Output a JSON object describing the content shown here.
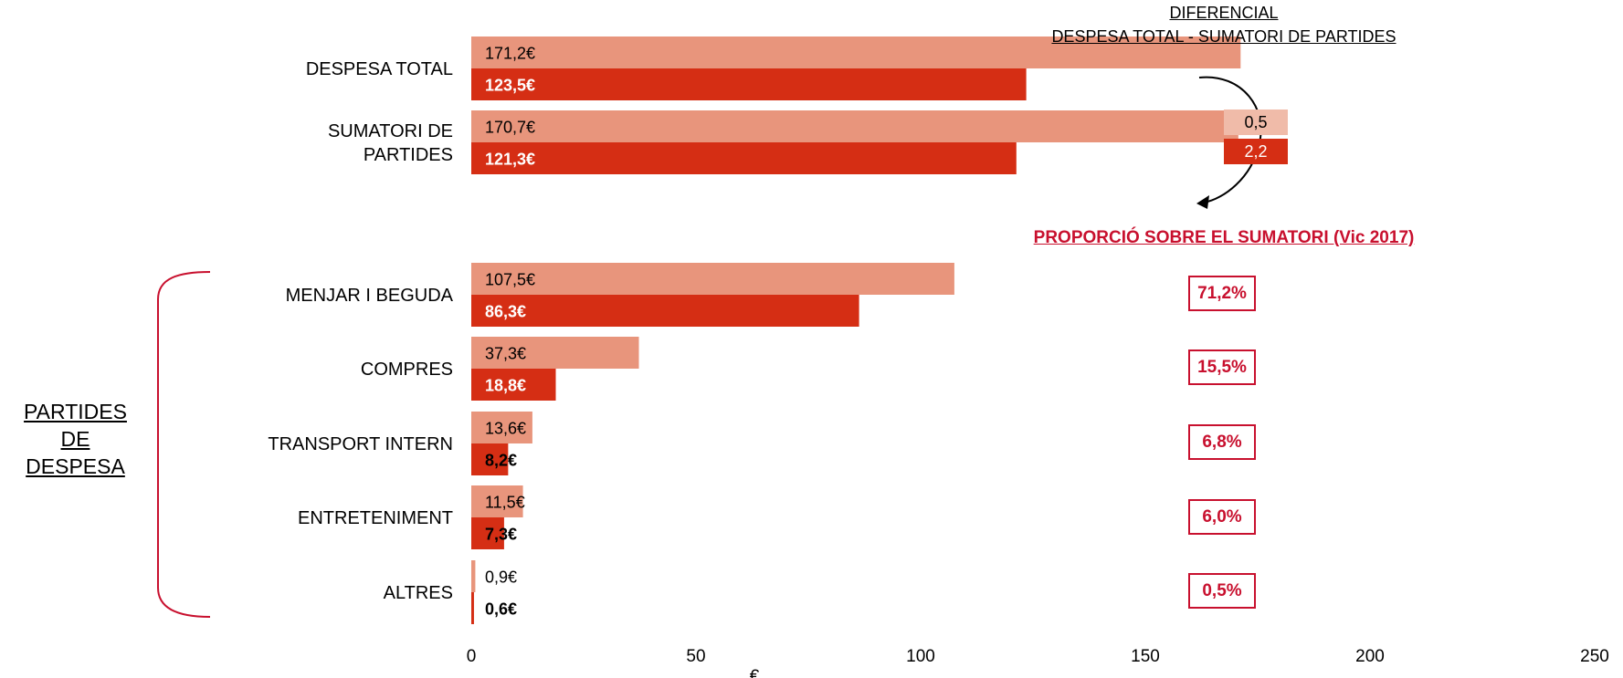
{
  "chart_data": {
    "type": "bar",
    "orientation": "horizontal",
    "xlabel": "€",
    "xlim": [
      0,
      250
    ],
    "xticks": [
      "0",
      "50",
      "100",
      "150",
      "200",
      "250"
    ],
    "series": [
      {
        "color": "#e8957c"
      },
      {
        "color": "#d52e14"
      }
    ],
    "categories": [
      {
        "label_lines": [
          "DESPESA TOTAL"
        ],
        "values": [
          171.2,
          123.5
        ],
        "labels": [
          "171,2€",
          "123,5€"
        ]
      },
      {
        "label_lines": [
          "SUMATORI DE",
          "PARTIDES"
        ],
        "values": [
          170.7,
          121.3
        ],
        "labels": [
          "170,7€",
          "121,3€"
        ]
      },
      {
        "label_lines": [
          "MENJAR I BEGUDA"
        ],
        "values": [
          107.5,
          86.3
        ],
        "labels": [
          "107,5€",
          "86,3€"
        ]
      },
      {
        "label_lines": [
          "COMPRES"
        ],
        "values": [
          37.3,
          18.8
        ],
        "labels": [
          "37,3€",
          "18,8€"
        ]
      },
      {
        "label_lines": [
          "TRANSPORT INTERN"
        ],
        "values": [
          13.6,
          8.2
        ],
        "labels": [
          "13,6€",
          "8,2€"
        ]
      },
      {
        "label_lines": [
          "ENTRETENIMENT"
        ],
        "values": [
          11.5,
          7.3
        ],
        "labels": [
          "11,5€",
          "7,3€"
        ]
      },
      {
        "label_lines": [
          "ALTRES"
        ],
        "values": [
          0.9,
          0.6
        ],
        "labels": [
          "0,9€",
          "0,6€"
        ]
      }
    ]
  },
  "group_label": {
    "line1": "PARTIDES",
    "line2": "DE DESPESA"
  },
  "differential": {
    "title_line1": "DIFERENCIAL",
    "title_line2": "DESPESA TOTAL - SUMATORI DE PARTIDES",
    "values": [
      "0,5",
      "2,2"
    ],
    "colors": [
      "#f0bba9",
      "#d52e14"
    ]
  },
  "proportion": {
    "title": "PROPORCIÓ SOBRE EL SUMATORI (Vic 2017)",
    "values": [
      "71,2%",
      "15,5%",
      "6,8%",
      "6,0%",
      "0,5%"
    ],
    "color": "#c8102e"
  },
  "colors": {
    "bracket": "#c8102e"
  }
}
